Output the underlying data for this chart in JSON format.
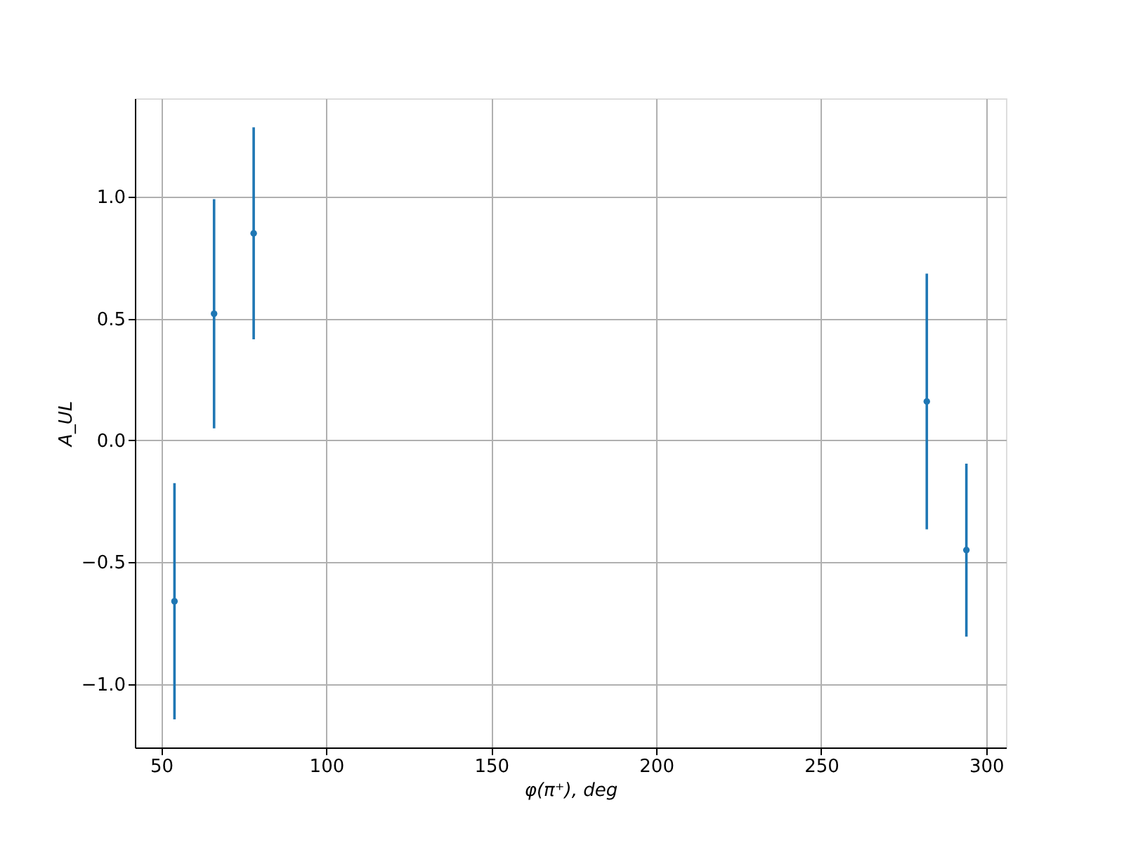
{
  "chart_data": {
    "type": "scatter",
    "xlabel": "φ(π⁺), deg",
    "ylabel": "A_UL",
    "x": [
      54,
      66,
      78,
      282,
      294
    ],
    "series": [
      {
        "color": "#1f77b4",
        "values": [
          -0.66,
          0.52,
          0.85,
          0.16,
          -0.45
        ],
        "errors": [
          0.485,
          0.47,
          0.435,
          0.525,
          0.355
        ]
      }
    ],
    "xlim": [
      42,
      306
    ],
    "xticks": [
      50,
      100,
      150,
      200,
      250,
      300
    ],
    "ylim": [
      -1.26,
      1.404
    ],
    "yticks": [
      {
        "value": -1,
        "label": "−1.0"
      },
      {
        "value": -0.5,
        "label": "−0.5"
      },
      {
        "value": 0,
        "label": "0.0"
      },
      {
        "value": 0.5,
        "label": "0.5"
      },
      {
        "value": 1,
        "label": "1.0"
      }
    ],
    "grid": true,
    "marker": "circle"
  }
}
